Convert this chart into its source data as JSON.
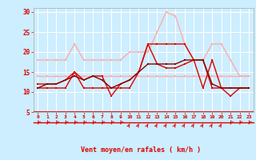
{
  "x": [
    0,
    1,
    2,
    3,
    4,
    5,
    6,
    7,
    8,
    9,
    10,
    11,
    12,
    13,
    14,
    15,
    16,
    17,
    18,
    19,
    20,
    21,
    22,
    23
  ],
  "line1": [
    11,
    11,
    11,
    11,
    15,
    11,
    11,
    11,
    11,
    11,
    11,
    15,
    22,
    22,
    22,
    22,
    22,
    18,
    11,
    18,
    11,
    11,
    11,
    11
  ],
  "line2": [
    14,
    14,
    14,
    14,
    14,
    14,
    14,
    14,
    14,
    14,
    14,
    14,
    14,
    14,
    14,
    14,
    14,
    14,
    14,
    14,
    14,
    14,
    14,
    14
  ],
  "line3": [
    12,
    12,
    12,
    13,
    15,
    13,
    14,
    14,
    9,
    12,
    13,
    15,
    22,
    17,
    16,
    16,
    17,
    18,
    18,
    11,
    11,
    9,
    11,
    11
  ],
  "line4": [
    18,
    18,
    18,
    18,
    22,
    18,
    18,
    18,
    18,
    18,
    20,
    20,
    20,
    25,
    30,
    29,
    22,
    18,
    18,
    22,
    22,
    18,
    14,
    14
  ],
  "line5": [
    11,
    12,
    12,
    13,
    14,
    13,
    14,
    13,
    11,
    12,
    13,
    15,
    17,
    17,
    17,
    17,
    18,
    18,
    18,
    12,
    11,
    11,
    11,
    11
  ],
  "color1": "#dd0000",
  "color2": "#ffaaaa",
  "color3": "#dd0000",
  "color4": "#ffaaaa",
  "color5": "#880000",
  "bg_color": "#cceeff",
  "grid_color": "#ffffff",
  "axis_color": "#dd0000",
  "xlabel": "Vent moyen/en rafales ( km/h )",
  "ylim": [
    5,
    31
  ],
  "yticks": [
    5,
    10,
    15,
    20,
    25,
    30
  ],
  "arrow_up_hours": [
    10,
    11,
    12,
    13,
    14,
    15,
    16,
    17,
    18,
    19,
    20
  ]
}
